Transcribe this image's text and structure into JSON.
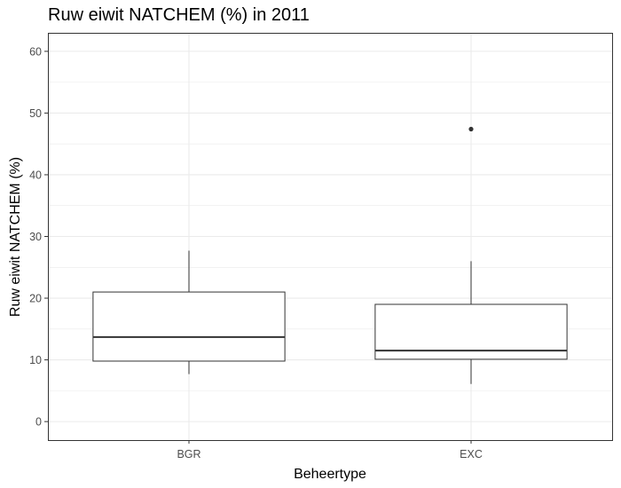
{
  "chart_data": {
    "type": "boxplot",
    "title": "Ruw eiwit NATCHEM (%) in 2011",
    "xlabel": "Beheertype",
    "ylabel": "Ruw eiwit NATCHEM (%)",
    "ylim": [
      -3,
      63
    ],
    "yticks": [
      0,
      10,
      20,
      30,
      40,
      50,
      60
    ],
    "categories": [
      "BGR",
      "EXC"
    ],
    "boxes": [
      {
        "category": "BGR",
        "whisker_low": 7.7,
        "q1": 9.8,
        "median": 13.7,
        "q3": 21.0,
        "whisker_high": 27.7,
        "outliers": []
      },
      {
        "category": "EXC",
        "whisker_low": 6.1,
        "q1": 10.1,
        "median": 11.5,
        "q3": 19.0,
        "whisker_high": 26.0,
        "outliers": [
          47.4
        ]
      }
    ],
    "grid": true,
    "legend": "none",
    "colors": {
      "box_fill": "#ffffff",
      "box_stroke": "#333333",
      "grid": "#ebebeb",
      "panel_border": "#333333",
      "outlier": "#333333"
    }
  }
}
